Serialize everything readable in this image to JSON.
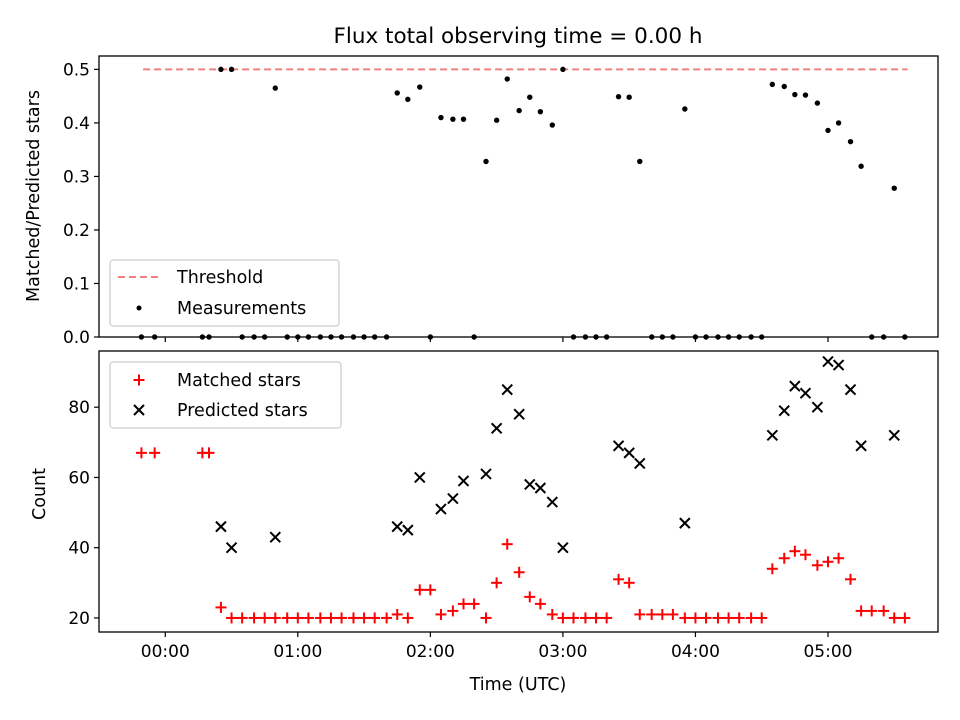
{
  "chart_data": [
    {
      "type": "scatter",
      "title": "Flux total observing time = 0.00 h",
      "xlabel": "",
      "ylabel": "Matched/Predicted stars",
      "xlim": [
        -0.5,
        5.83
      ],
      "ylim": [
        0,
        0.525
      ],
      "yticks": [
        0.0,
        0.1,
        0.2,
        0.3,
        0.4,
        0.5
      ],
      "ytick_labels": [
        "0.0",
        "0.1",
        "0.2",
        "0.3",
        "0.4",
        "0.5"
      ],
      "legend": {
        "placement": "lower-left",
        "entries": [
          "Threshold",
          "Measurements"
        ]
      },
      "series": [
        {
          "name": "Threshold",
          "kind": "dashed-line",
          "color": "#f08080",
          "x": [
            -0.167,
            5.6
          ],
          "y": [
            0.5,
            0.5
          ]
        },
        {
          "name": "Measurements",
          "kind": "dot",
          "color": "#000000",
          "x": [
            -0.18,
            -0.08,
            0.28,
            0.33,
            0.42,
            0.5,
            0.58,
            0.67,
            0.75,
            0.83,
            0.92,
            1.0,
            1.08,
            1.17,
            1.25,
            1.33,
            1.42,
            1.5,
            1.58,
            1.67,
            1.75,
            1.83,
            1.92,
            2.0,
            2.08,
            2.17,
            2.25,
            2.33,
            2.42,
            2.5,
            2.58,
            2.67,
            2.75,
            2.83,
            2.92,
            3.0,
            3.08,
            3.17,
            3.25,
            3.33,
            3.42,
            3.5,
            3.58,
            3.67,
            3.75,
            3.83,
            3.92,
            4.0,
            4.08,
            4.17,
            4.25,
            4.33,
            4.42,
            4.5,
            4.58,
            4.67,
            4.75,
            4.83,
            4.92,
            5.0,
            5.08,
            5.17,
            5.25,
            5.33,
            5.42,
            5.5,
            5.58
          ],
          "y": [
            0,
            0,
            0,
            0,
            0.5,
            0.5,
            0,
            0,
            0,
            0.465,
            0,
            0,
            0,
            0,
            0,
            0,
            0,
            0,
            0,
            0,
            0.456,
            0.444,
            0.467,
            0,
            0.41,
            0.407,
            0.407,
            0,
            0.328,
            0.405,
            0.482,
            0.423,
            0.448,
            0.421,
            0.396,
            0.5,
            0,
            0,
            0,
            0,
            0.449,
            0.448,
            0.328,
            0,
            0,
            0,
            0.426,
            0,
            0,
            0,
            0,
            0,
            0,
            0,
            0.472,
            0.468,
            0.453,
            0.452,
            0.437,
            0.386,
            0.4,
            0.365,
            0.319,
            0,
            0,
            0.278,
            0
          ]
        }
      ]
    },
    {
      "type": "scatter",
      "title": "",
      "xlabel": "Time (UTC)",
      "ylabel": "Count",
      "xlim": [
        -0.5,
        5.83
      ],
      "ylim": [
        16,
        96
      ],
      "yticks": [
        20,
        40,
        60,
        80
      ],
      "ytick_labels": [
        "20",
        "40",
        "60",
        "80"
      ],
      "xticks": [
        0,
        1,
        2,
        3,
        4,
        5
      ],
      "xtick_labels": [
        "00:00",
        "01:00",
        "02:00",
        "03:00",
        "04:00",
        "05:00"
      ],
      "legend": {
        "placement": "top-left",
        "entries": [
          "Matched stars",
          "Predicted stars"
        ]
      },
      "series": [
        {
          "name": "Matched stars",
          "kind": "plus",
          "color": "#ff0000",
          "x": [
            -0.18,
            -0.08,
            0.28,
            0.33,
            0.42,
            0.5,
            0.58,
            0.67,
            0.75,
            0.83,
            0.92,
            1.0,
            1.08,
            1.17,
            1.25,
            1.33,
            1.42,
            1.5,
            1.58,
            1.67,
            1.75,
            1.83,
            1.92,
            2.0,
            2.08,
            2.17,
            2.25,
            2.33,
            2.42,
            2.5,
            2.58,
            2.67,
            2.75,
            2.83,
            2.92,
            3.0,
            3.08,
            3.17,
            3.25,
            3.33,
            3.42,
            3.5,
            3.58,
            3.67,
            3.75,
            3.83,
            3.92,
            4.0,
            4.08,
            4.17,
            4.25,
            4.33,
            4.42,
            4.5,
            4.58,
            4.67,
            4.75,
            4.83,
            4.92,
            5.0,
            5.08,
            5.17,
            5.25,
            5.33,
            5.42,
            5.5,
            5.58
          ],
          "y": [
            67,
            67,
            67,
            67,
            23,
            20,
            20,
            20,
            20,
            20,
            20,
            20,
            20,
            20,
            20,
            20,
            20,
            20,
            20,
            20,
            21,
            20,
            28,
            28,
            21,
            22,
            24,
            24,
            20,
            30,
            41,
            33,
            26,
            24,
            21,
            20,
            20,
            20,
            20,
            20,
            31,
            30,
            21,
            21,
            21,
            21,
            20,
            20,
            20,
            20,
            20,
            20,
            20,
            20,
            34,
            37,
            39,
            38,
            35,
            36,
            37,
            31,
            22,
            22,
            22,
            20,
            20
          ]
        },
        {
          "name": "Predicted stars",
          "kind": "x",
          "color": "#000000",
          "x": [
            0.42,
            0.5,
            0.83,
            1.75,
            1.83,
            1.92,
            2.08,
            2.17,
            2.25,
            2.42,
            2.5,
            2.58,
            2.67,
            2.75,
            2.83,
            2.92,
            3.0,
            3.42,
            3.5,
            3.58,
            3.92,
            4.58,
            4.67,
            4.75,
            4.83,
            4.92,
            5.0,
            5.08,
            5.17,
            5.25,
            5.5
          ],
          "y": [
            46,
            40,
            43,
            46,
            45,
            60,
            51,
            54,
            59,
            61,
            74,
            85,
            78,
            58,
            57,
            53,
            40,
            69,
            67,
            64,
            47,
            72,
            79,
            86,
            84,
            80,
            93,
            92,
            85,
            69,
            72
          ]
        }
      ]
    }
  ]
}
